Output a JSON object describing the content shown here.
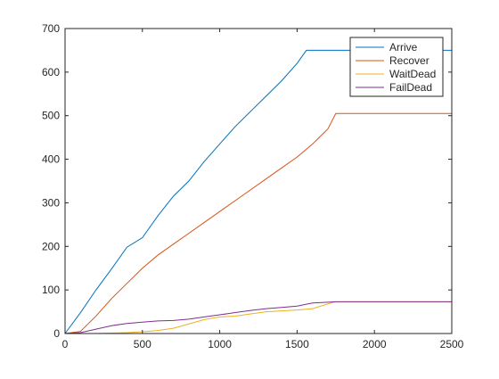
{
  "chart_data": {
    "type": "line",
    "title": "",
    "xlabel": "",
    "ylabel": "",
    "xlim": [
      0,
      2500
    ],
    "ylim": [
      0,
      700
    ],
    "xticks": [
      0,
      500,
      1000,
      1500,
      2000,
      2500
    ],
    "yticks": [
      0,
      100,
      200,
      300,
      400,
      500,
      600,
      700
    ],
    "grid": false,
    "legend_position": "top-right",
    "series": [
      {
        "name": "Arrive",
        "color": "#0072BD",
        "x": [
          0,
          100,
          200,
          300,
          400,
          500,
          600,
          700,
          800,
          900,
          1000,
          1100,
          1200,
          1300,
          1400,
          1500,
          1560,
          1600,
          1750,
          2000,
          2500
        ],
        "y": [
          0,
          48,
          100,
          148,
          198,
          220,
          270,
          315,
          350,
          395,
          435,
          475,
          510,
          545,
          580,
          620,
          650,
          650,
          650,
          650,
          650
        ]
      },
      {
        "name": "Recover",
        "color": "#D95319",
        "x": [
          0,
          100,
          200,
          300,
          400,
          500,
          600,
          700,
          800,
          900,
          1000,
          1100,
          1200,
          1300,
          1400,
          1500,
          1600,
          1700,
          1750,
          2000,
          2500
        ],
        "y": [
          0,
          5,
          40,
          80,
          115,
          150,
          180,
          205,
          230,
          255,
          280,
          305,
          330,
          355,
          380,
          405,
          435,
          470,
          505,
          505,
          505
        ]
      },
      {
        "name": "WaitDead",
        "color": "#EDB120",
        "x": [
          0,
          200,
          300,
          400,
          500,
          600,
          700,
          800,
          900,
          1000,
          1100,
          1200,
          1300,
          1400,
          1500,
          1600,
          1700,
          1750,
          2000,
          2500
        ],
        "y": [
          0,
          0,
          1,
          2,
          4,
          7,
          12,
          22,
          32,
          38,
          40,
          45,
          50,
          52,
          54,
          57,
          68,
          73,
          73,
          73
        ]
      },
      {
        "name": "FailDead",
        "color": "#7E2F8E",
        "x": [
          0,
          100,
          200,
          300,
          400,
          500,
          600,
          700,
          800,
          900,
          1000,
          1100,
          1200,
          1300,
          1400,
          1500,
          1600,
          1700,
          1750,
          2000,
          2500
        ],
        "y": [
          0,
          2,
          10,
          18,
          23,
          26,
          29,
          30,
          33,
          38,
          43,
          48,
          53,
          57,
          60,
          63,
          70,
          72,
          73,
          73,
          73
        ]
      }
    ]
  }
}
